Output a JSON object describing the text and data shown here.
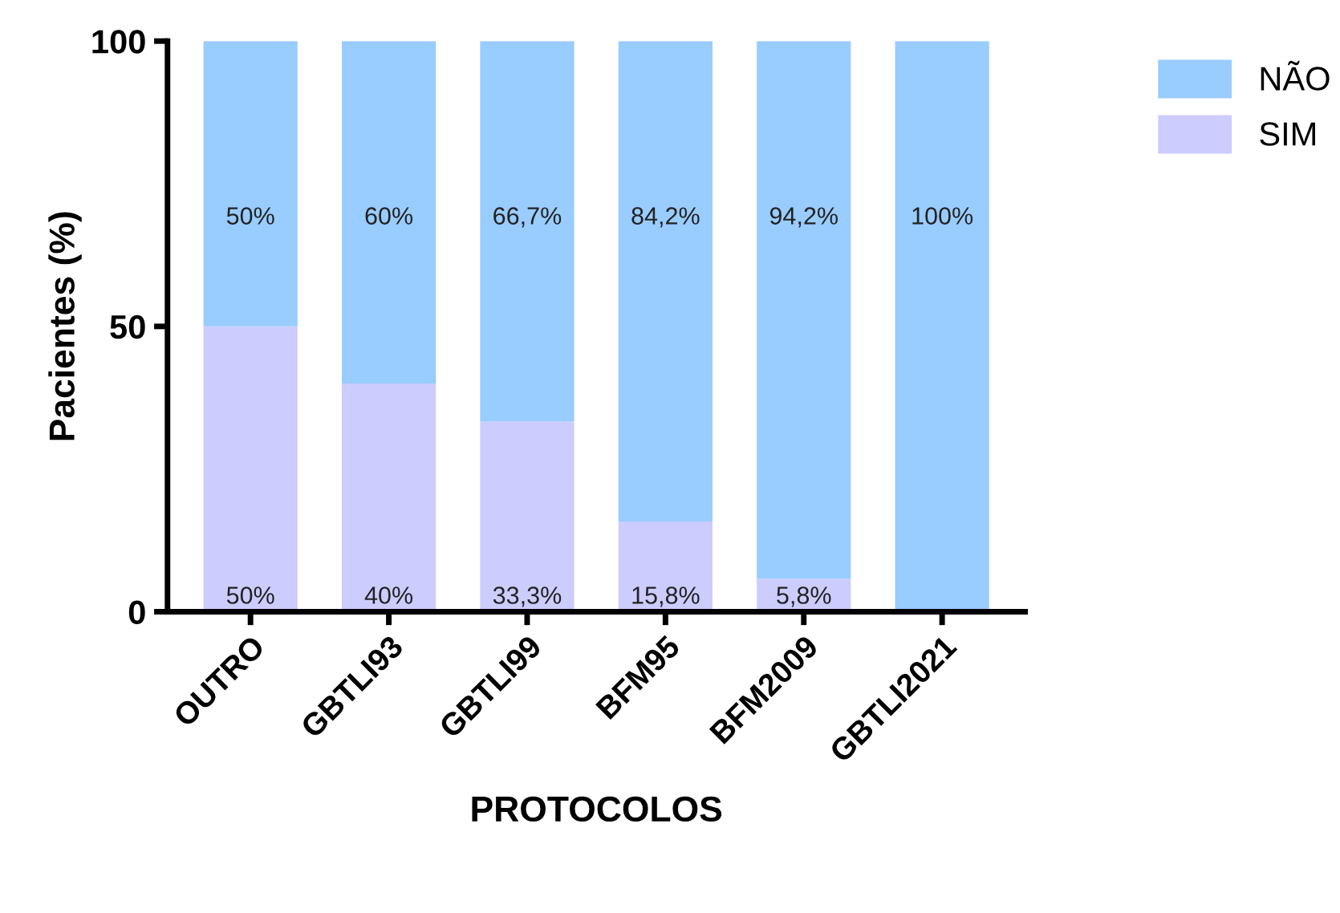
{
  "chart_data": {
    "type": "bar",
    "stacked": true,
    "xlabel": "PROTOCOLOS",
    "ylabel": "Pacientes (%)",
    "categories": [
      "OUTRO",
      "GBTLI93",
      "GBTLI99",
      "BFM95",
      "BFM2009",
      "GBTLI2021"
    ],
    "series": [
      {
        "name": "SIM",
        "color": "#ccccff",
        "values": [
          50,
          40,
          33.3,
          15.8,
          5.8,
          0
        ],
        "value_labels": [
          "50%",
          "40%",
          "33,3%",
          "15,8%",
          "5,8%",
          null
        ]
      },
      {
        "name": "NÃO",
        "color": "#99ccff",
        "values": [
          50,
          60,
          66.7,
          84.2,
          94.2,
          100
        ],
        "value_labels": [
          "50%",
          "60%",
          "66,7%",
          "84,2%",
          "94,2%",
          "100%"
        ]
      }
    ],
    "ylim": [
      0,
      100
    ],
    "yticks": [
      0,
      50,
      100
    ],
    "grid": false,
    "legend": "top right"
  }
}
